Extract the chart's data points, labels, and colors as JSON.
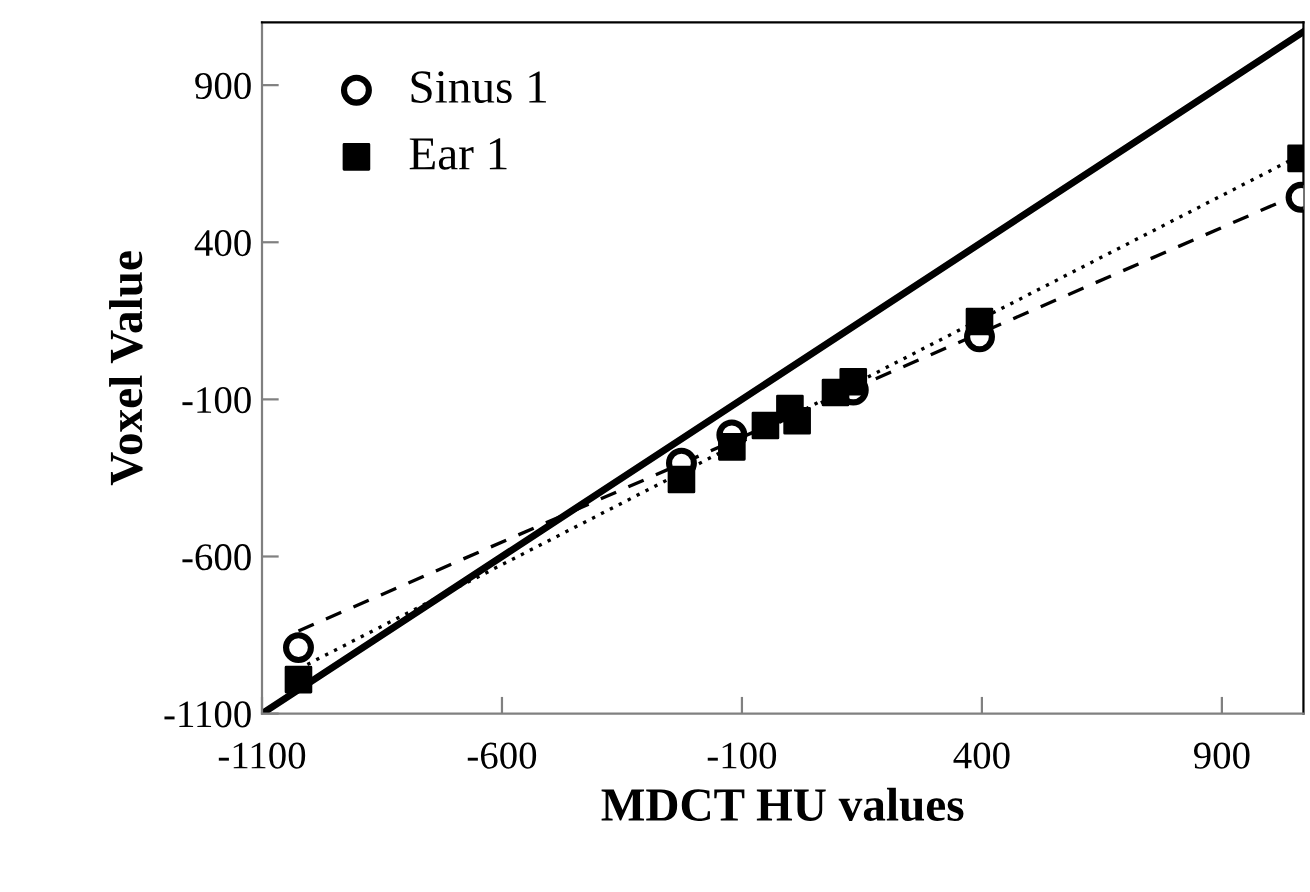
{
  "chart_data": {
    "type": "scatter",
    "xlabel": "MDCT HU values",
    "ylabel": "Voxel Value",
    "xlim": [
      -1100,
      1070
    ],
    "ylim": [
      -1100,
      1100
    ],
    "xticks": [
      -1100,
      -600,
      -100,
      400,
      900
    ],
    "yticks": [
      -1100,
      -600,
      -100,
      400,
      900
    ],
    "grid": false,
    "legend": "top left",
    "series": [
      {
        "name": "Sinus 1",
        "marker": "circle",
        "color": "#000000",
        "x": [
          -1024,
          -226,
          -121,
          0,
          95,
          132,
          395,
          1065
        ],
        "values": [
          -890,
          -303,
          -213,
          null,
          null,
          -70,
          99,
          543
        ]
      },
      {
        "name": "Ear 1",
        "marker": "square",
        "color": "#000000",
        "x": [
          -1024,
          -226,
          -121,
          -51,
          0,
          15,
          73,
          95,
          132,
          395,
          1065
        ],
        "values": [
          -992,
          -355,
          -251,
          -183,
          -129,
          -168,
          null,
          -78,
          -44,
          148,
          667
        ]
      },
      {
        "type": "line",
        "line_style": "dashed",
        "color": "#000000",
        "x": [
          -1024,
          1065
        ],
        "values": [
          -837,
          557
        ]
      },
      {
        "type": "line",
        "line_style": "dotted",
        "color": "#000000",
        "x": [
          -1024,
          1065
        ],
        "values": [
          -958,
          678
        ]
      },
      {
        "type": "line",
        "line_style": "solid",
        "color": "#000000",
        "x": [
          -1100,
          1070
        ],
        "values": [
          -1100,
          1070
        ]
      }
    ]
  }
}
